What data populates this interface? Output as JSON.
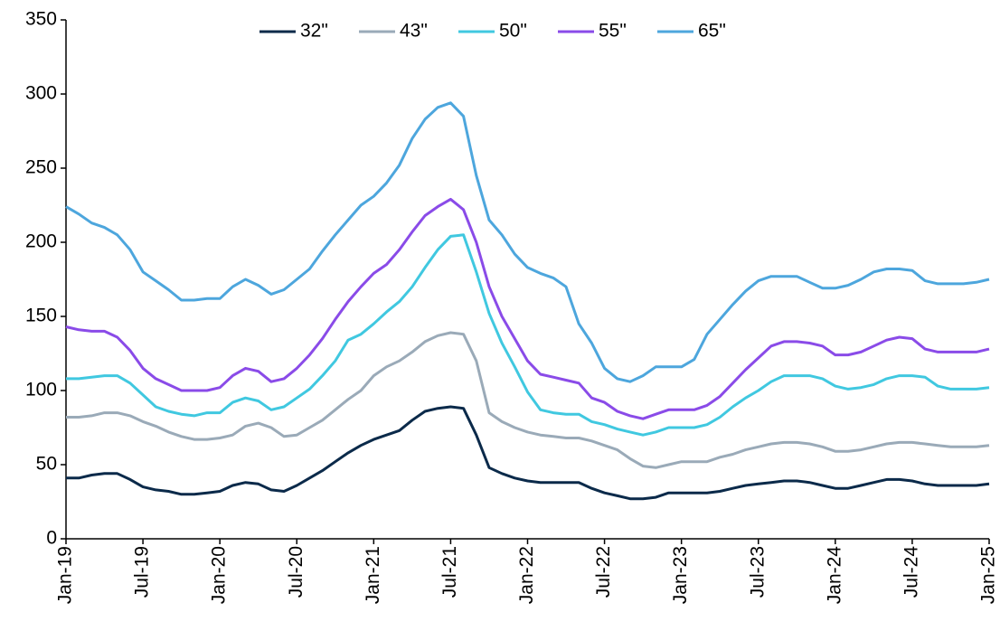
{
  "chart_data": {
    "type": "line",
    "categories": [
      "Jan-19",
      null,
      null,
      null,
      null,
      null,
      "Jul-19",
      null,
      null,
      null,
      null,
      null,
      "Jan-20",
      null,
      null,
      null,
      null,
      null,
      "Jul-20",
      null,
      null,
      null,
      null,
      null,
      "Jan-21",
      null,
      null,
      null,
      null,
      null,
      "Jul-21",
      null,
      null,
      null,
      null,
      null,
      "Jan-22",
      null,
      null,
      null,
      null,
      null,
      "Jul-22",
      null,
      null,
      null,
      null,
      null,
      "Jan-23",
      null,
      null,
      null,
      null,
      null,
      "Jul-23",
      null,
      null,
      null,
      null,
      null,
      "Jan-24",
      null,
      null,
      null,
      null,
      null,
      "Jul-24",
      null,
      null,
      null,
      null,
      null,
      "Jan-25"
    ],
    "ylim": [
      0,
      350
    ],
    "yticks": [
      0,
      50,
      100,
      150,
      200,
      250,
      300,
      350
    ],
    "grid": false,
    "legend": "top",
    "series": [
      {
        "name": "32\"",
        "color": "#0b2a4a",
        "values": [
          41,
          41,
          43,
          44,
          44,
          40,
          35,
          33,
          32,
          30,
          30,
          31,
          32,
          36,
          38,
          37,
          33,
          32,
          36,
          41,
          46,
          52,
          58,
          63,
          67,
          70,
          73,
          80,
          86,
          88,
          89,
          88,
          70,
          48,
          44,
          41,
          39,
          38,
          38,
          38,
          38,
          34,
          31,
          29,
          27,
          27,
          28,
          31,
          31,
          31,
          31,
          32,
          34,
          36,
          37,
          38,
          39,
          39,
          38,
          36,
          34,
          34,
          36,
          38,
          40,
          40,
          39,
          37,
          36,
          36,
          36,
          36,
          37
        ]
      },
      {
        "name": "43\"",
        "color": "#9aaab8",
        "values": [
          82,
          82,
          83,
          85,
          85,
          83,
          79,
          76,
          72,
          69,
          67,
          67,
          68,
          70,
          76,
          78,
          75,
          69,
          70,
          75,
          80,
          87,
          94,
          100,
          110,
          116,
          120,
          126,
          133,
          137,
          139,
          138,
          120,
          85,
          79,
          75,
          72,
          70,
          69,
          68,
          68,
          66,
          63,
          60,
          54,
          49,
          48,
          50,
          52,
          52,
          52,
          55,
          57,
          60,
          62,
          64,
          65,
          65,
          64,
          62,
          59,
          59,
          60,
          62,
          64,
          65,
          65,
          64,
          63,
          62,
          62,
          62,
          63
        ]
      },
      {
        "name": "50\"",
        "color": "#40c8e0",
        "values": [
          108,
          108,
          109,
          110,
          110,
          105,
          97,
          89,
          86,
          84,
          83,
          85,
          85,
          92,
          95,
          93,
          87,
          89,
          95,
          101,
          110,
          120,
          134,
          138,
          145,
          153,
          160,
          170,
          183,
          195,
          204,
          205,
          180,
          152,
          132,
          116,
          99,
          87,
          85,
          84,
          84,
          79,
          77,
          74,
          72,
          70,
          72,
          75,
          75,
          75,
          77,
          82,
          89,
          95,
          100,
          106,
          110,
          110,
          110,
          108,
          103,
          101,
          102,
          104,
          108,
          110,
          110,
          109,
          103,
          101,
          101,
          101,
          102
        ]
      },
      {
        "name": "55\"",
        "color": "#8a4be8",
        "values": [
          143,
          141,
          140,
          140,
          136,
          127,
          115,
          108,
          104,
          100,
          100,
          100,
          102,
          110,
          115,
          113,
          106,
          108,
          115,
          124,
          135,
          148,
          160,
          170,
          179,
          185,
          195,
          207,
          218,
          224,
          229,
          222,
          200,
          170,
          150,
          135,
          120,
          111,
          109,
          107,
          105,
          95,
          92,
          86,
          83,
          81,
          84,
          87,
          87,
          87,
          90,
          96,
          105,
          114,
          122,
          130,
          133,
          133,
          132,
          130,
          124,
          124,
          126,
          130,
          134,
          136,
          135,
          128,
          126,
          126,
          126,
          126,
          128
        ]
      },
      {
        "name": "65\"",
        "color": "#4da6dd",
        "values": [
          224,
          219,
          213,
          210,
          205,
          195,
          180,
          174,
          168,
          161,
          161,
          162,
          162,
          170,
          175,
          171,
          165,
          168,
          175,
          182,
          194,
          205,
          215,
          225,
          231,
          240,
          252,
          270,
          283,
          291,
          294,
          285,
          245,
          215,
          205,
          192,
          183,
          179,
          176,
          170,
          145,
          132,
          115,
          108,
          106,
          110,
          116,
          116,
          116,
          121,
          138,
          148,
          158,
          167,
          174,
          177,
          177,
          177,
          173,
          169,
          169,
          171,
          175,
          180,
          182,
          182,
          181,
          174,
          172,
          172,
          172,
          173,
          175
        ]
      }
    ]
  }
}
